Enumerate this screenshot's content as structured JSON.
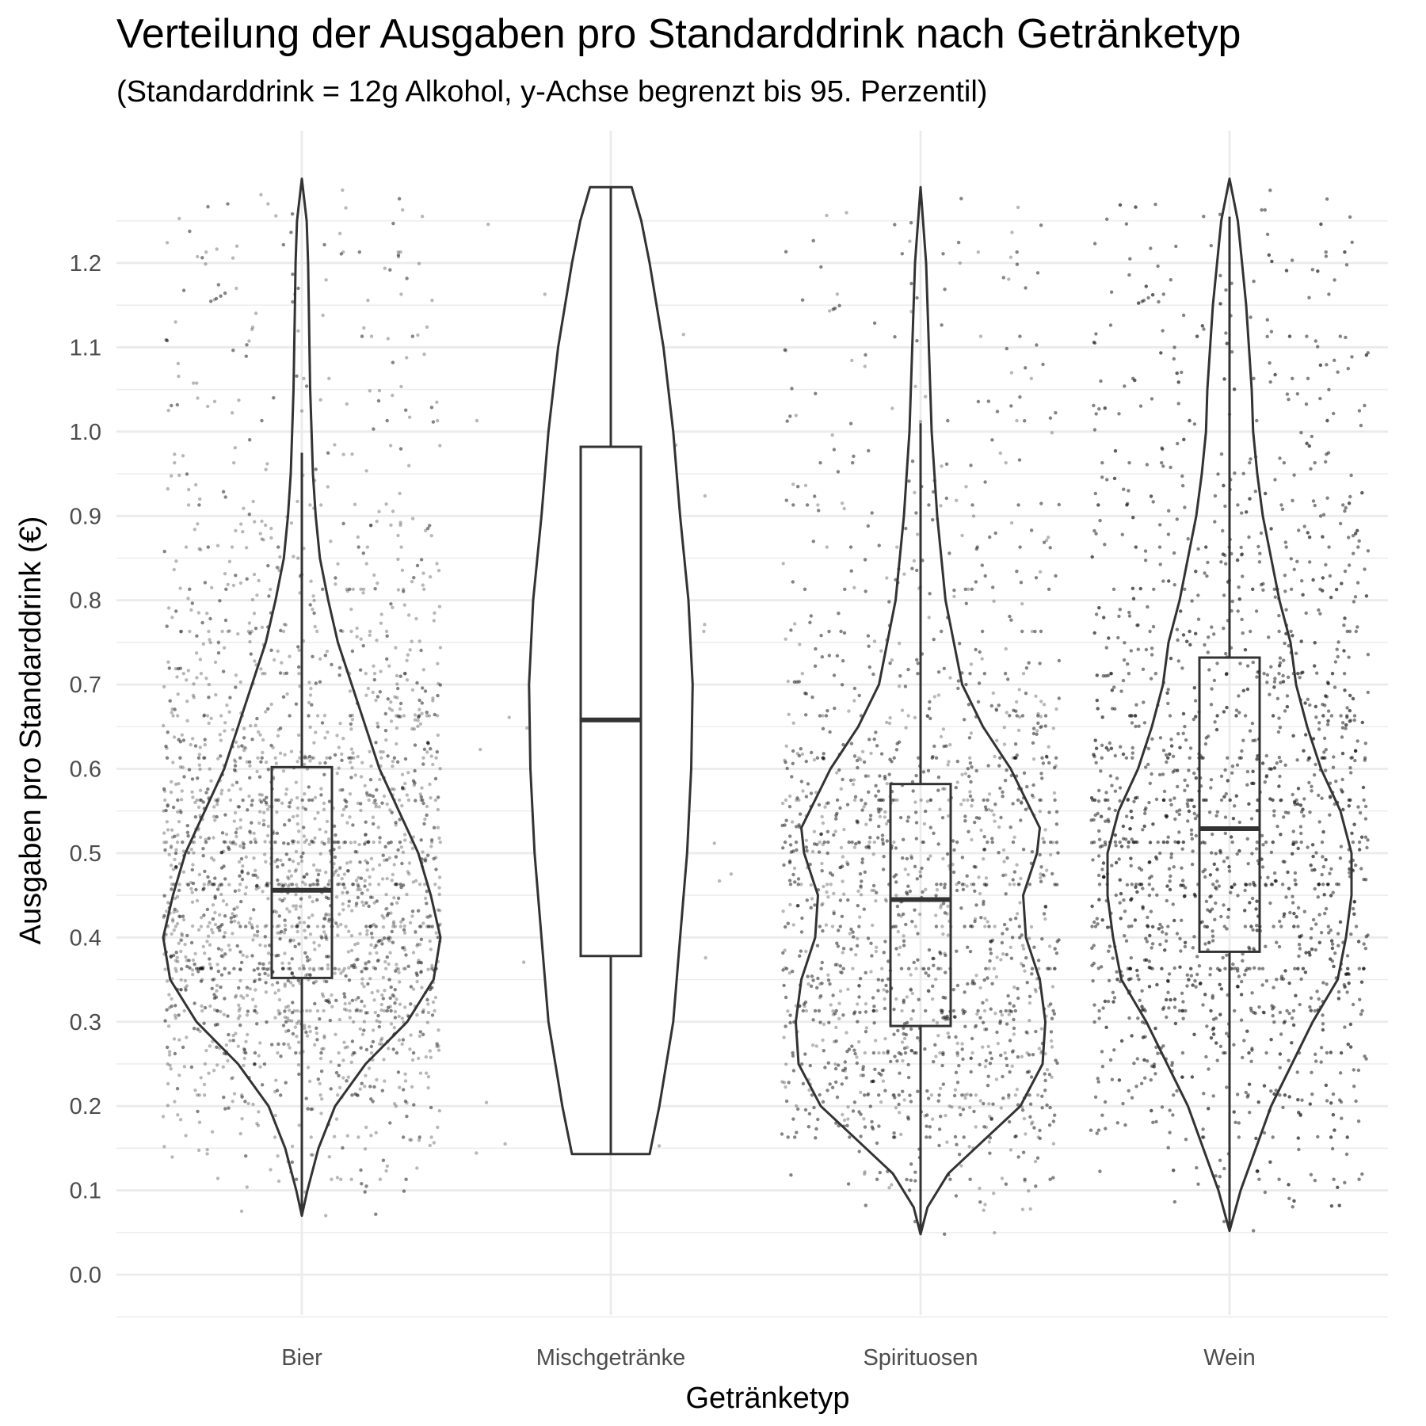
{
  "chart_data": {
    "type": "violin",
    "title": "Verteilung der Ausgaben pro Standarddrink nach Getränketyp",
    "subtitle": "(Standarddrink = 12g Alkohol, y-Achse begrenzt bis 95. Perzentil)",
    "xlabel": "Getränketyp",
    "ylabel": "Ausgaben pro Standarddrink (€)",
    "ylim": [
      -0.05,
      1.31
    ],
    "yticks": [
      0.0,
      0.1,
      0.2,
      0.3,
      0.4,
      0.5,
      0.6,
      0.7,
      0.8,
      0.9,
      1.0,
      1.1,
      1.2
    ],
    "grid": true,
    "legend": "none",
    "categories": [
      "Bier",
      "Mischgetränke",
      "Spirituosen",
      "Wein"
    ],
    "boxplots": [
      {
        "category": "Bier",
        "whisker_low": 0.07,
        "q1": 0.352,
        "median": 0.456,
        "q3": 0.602,
        "whisker_high": 0.975
      },
      {
        "category": "Mischgetränke",
        "whisker_low": 0.143,
        "q1": 0.378,
        "median": 0.658,
        "q3": 0.982,
        "whisker_high": 1.29
      },
      {
        "category": "Spirituosen",
        "whisker_low": 0.048,
        "q1": 0.295,
        "median": 0.445,
        "q3": 0.582,
        "whisker_high": 1.01
      },
      {
        "category": "Wein",
        "whisker_low": 0.052,
        "q1": 0.383,
        "median": 0.529,
        "q3": 0.732,
        "whisker_high": 1.255
      }
    ],
    "violins": [
      {
        "category": "Bier",
        "min": 0.07,
        "max": 1.3,
        "profile": [
          [
            0.07,
            0.0
          ],
          [
            0.1,
            0.04
          ],
          [
            0.15,
            0.12
          ],
          [
            0.2,
            0.24
          ],
          [
            0.25,
            0.46
          ],
          [
            0.3,
            0.76
          ],
          [
            0.35,
            0.95
          ],
          [
            0.4,
            1.0
          ],
          [
            0.45,
            0.93
          ],
          [
            0.5,
            0.84
          ],
          [
            0.55,
            0.7
          ],
          [
            0.6,
            0.56
          ],
          [
            0.65,
            0.46
          ],
          [
            0.7,
            0.36
          ],
          [
            0.75,
            0.26
          ],
          [
            0.8,
            0.19
          ],
          [
            0.85,
            0.13
          ],
          [
            0.9,
            0.1
          ],
          [
            0.95,
            0.08
          ],
          [
            1.0,
            0.07
          ],
          [
            1.05,
            0.06
          ],
          [
            1.1,
            0.055
          ],
          [
            1.15,
            0.05
          ],
          [
            1.2,
            0.045
          ],
          [
            1.25,
            0.035
          ],
          [
            1.3,
            0.0
          ]
        ]
      },
      {
        "category": "Mischgetränke",
        "min": 0.143,
        "max": 1.29,
        "profile": [
          [
            0.143,
            0.28
          ],
          [
            0.2,
            0.35
          ],
          [
            0.3,
            0.45
          ],
          [
            0.4,
            0.5
          ],
          [
            0.5,
            0.55
          ],
          [
            0.6,
            0.58
          ],
          [
            0.7,
            0.59
          ],
          [
            0.8,
            0.56
          ],
          [
            0.9,
            0.5
          ],
          [
            1.0,
            0.45
          ],
          [
            1.1,
            0.38
          ],
          [
            1.2,
            0.28
          ],
          [
            1.25,
            0.22
          ],
          [
            1.29,
            0.15
          ]
        ]
      },
      {
        "category": "Spirituosen",
        "min": 0.048,
        "max": 1.29,
        "profile": [
          [
            0.048,
            0.0
          ],
          [
            0.08,
            0.05
          ],
          [
            0.12,
            0.2
          ],
          [
            0.16,
            0.46
          ],
          [
            0.2,
            0.72
          ],
          [
            0.25,
            0.88
          ],
          [
            0.3,
            0.9
          ],
          [
            0.35,
            0.86
          ],
          [
            0.4,
            0.76
          ],
          [
            0.45,
            0.74
          ],
          [
            0.5,
            0.84
          ],
          [
            0.53,
            0.86
          ],
          [
            0.6,
            0.65
          ],
          [
            0.65,
            0.45
          ],
          [
            0.7,
            0.3
          ],
          [
            0.8,
            0.18
          ],
          [
            0.9,
            0.12
          ],
          [
            1.0,
            0.08
          ],
          [
            1.1,
            0.06
          ],
          [
            1.2,
            0.04
          ],
          [
            1.29,
            0.0
          ]
        ]
      },
      {
        "category": "Wein",
        "min": 0.052,
        "max": 1.3,
        "profile": [
          [
            0.052,
            0.0
          ],
          [
            0.1,
            0.08
          ],
          [
            0.2,
            0.3
          ],
          [
            0.3,
            0.6
          ],
          [
            0.35,
            0.78
          ],
          [
            0.4,
            0.84
          ],
          [
            0.45,
            0.88
          ],
          [
            0.5,
            0.88
          ],
          [
            0.55,
            0.8
          ],
          [
            0.6,
            0.66
          ],
          [
            0.65,
            0.56
          ],
          [
            0.7,
            0.48
          ],
          [
            0.75,
            0.44
          ],
          [
            0.8,
            0.36
          ],
          [
            0.85,
            0.3
          ],
          [
            0.9,
            0.24
          ],
          [
            0.95,
            0.2
          ],
          [
            1.0,
            0.17
          ],
          [
            1.05,
            0.16
          ],
          [
            1.1,
            0.14
          ],
          [
            1.15,
            0.12
          ],
          [
            1.2,
            0.09
          ],
          [
            1.25,
            0.06
          ],
          [
            1.3,
            0.0
          ]
        ]
      }
    ],
    "jitter_points": [
      {
        "category": "Bier",
        "n": 3000
      },
      {
        "category": "Mischgetränke",
        "n": 40
      },
      {
        "category": "Spirituosen",
        "n": 2600
      },
      {
        "category": "Wein",
        "n": 3600
      }
    ],
    "colors": {
      "outline": "#333333",
      "points": "#000000",
      "grid": "#ebebeb",
      "tick_text": "#4d4d4d"
    }
  }
}
